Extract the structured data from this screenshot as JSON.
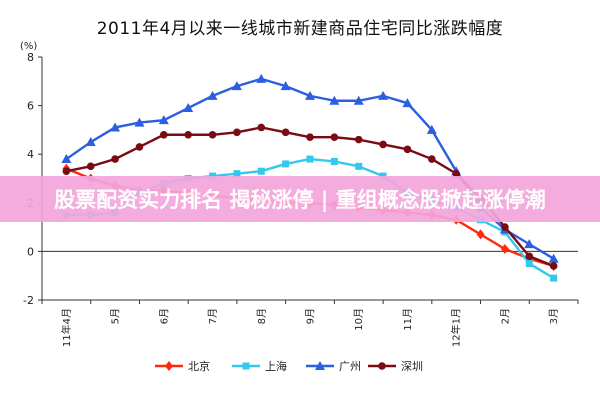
{
  "chart_data": {
    "type": "line",
    "title": "2011年4月以来一线城市新建商品住宅同比涨跌幅度",
    "ylabel": "(%)",
    "xlabel": "",
    "ylim": [
      -2,
      8
    ],
    "yticks": [
      -2,
      0,
      2,
      4,
      6,
      8
    ],
    "grid": false,
    "legend_position": "bottom",
    "categories": [
      "11年4月",
      "5月",
      "6月",
      "7月",
      "8月",
      "9月",
      "10月",
      "11月",
      "12年1月",
      "2月",
      "3月"
    ],
    "x_ticks": [
      "11年4月",
      "5月",
      "6月",
      "7月",
      "8月",
      "9月",
      "10月",
      "11月",
      "12年1月",
      "2月",
      "3月"
    ],
    "series": [
      {
        "name": "北京",
        "color": "#ff2a0c",
        "marker": "diamond",
        "x": [
          0,
          0.5,
          1,
          1.5,
          2,
          2.5,
          3,
          3.5,
          4,
          4.5,
          5,
          5.5,
          6,
          6.5,
          7,
          7.5,
          8,
          8.5,
          9,
          9.5,
          10
        ],
        "values": [
          3.4,
          3.0,
          2.7,
          2.5,
          2.5,
          2.4,
          2.3,
          2.2,
          2.1,
          2.0,
          2.0,
          1.9,
          1.8,
          1.7,
          1.6,
          1.5,
          1.3,
          0.7,
          0.1,
          -0.3,
          -0.6
        ]
      },
      {
        "name": "上海",
        "color": "#33c8ee",
        "marker": "square",
        "x": [
          0,
          0.5,
          1,
          1.5,
          2,
          2.5,
          3,
          3.5,
          4,
          4.5,
          5,
          5.5,
          6,
          6.5,
          7,
          7.5,
          8,
          8.5,
          9,
          9.5,
          10
        ],
        "values": [
          1.5,
          1.5,
          1.6,
          2.4,
          2.8,
          3.0,
          3.1,
          3.2,
          3.3,
          3.6,
          3.8,
          3.7,
          3.5,
          3.1,
          2.4,
          2.1,
          1.8,
          1.3,
          0.8,
          -0.5,
          -1.1
        ]
      },
      {
        "name": "广州",
        "color": "#2b5ee0",
        "marker": "triangle",
        "x": [
          0,
          0.5,
          1,
          1.5,
          2,
          2.5,
          3,
          3.5,
          4,
          4.5,
          5,
          5.5,
          6,
          6.5,
          7,
          7.5,
          8,
          8.5,
          9,
          9.5,
          10
        ],
        "values": [
          3.8,
          4.5,
          5.1,
          5.3,
          5.4,
          5.9,
          6.4,
          6.8,
          7.1,
          6.8,
          6.4,
          6.2,
          6.2,
          6.4,
          6.1,
          5.0,
          3.3,
          1.8,
          0.9,
          0.3,
          -0.3
        ]
      },
      {
        "name": "深圳",
        "color": "#7a0b12",
        "marker": "circle",
        "x": [
          0,
          0.5,
          1,
          1.5,
          2,
          2.5,
          3,
          3.5,
          4,
          4.5,
          5,
          5.5,
          6,
          6.5,
          7,
          7.5,
          8,
          8.5,
          9,
          9.5,
          10
        ],
        "values": [
          3.3,
          3.5,
          3.8,
          4.3,
          4.8,
          4.8,
          4.8,
          4.9,
          5.1,
          4.9,
          4.7,
          4.7,
          4.6,
          4.4,
          4.2,
          3.8,
          3.2,
          2.2,
          1.0,
          -0.2,
          -0.6
        ]
      }
    ]
  },
  "banner": {
    "text": "股票配资实力排名 揭秘涨停 | 重组概念股掀起涨停潮"
  }
}
